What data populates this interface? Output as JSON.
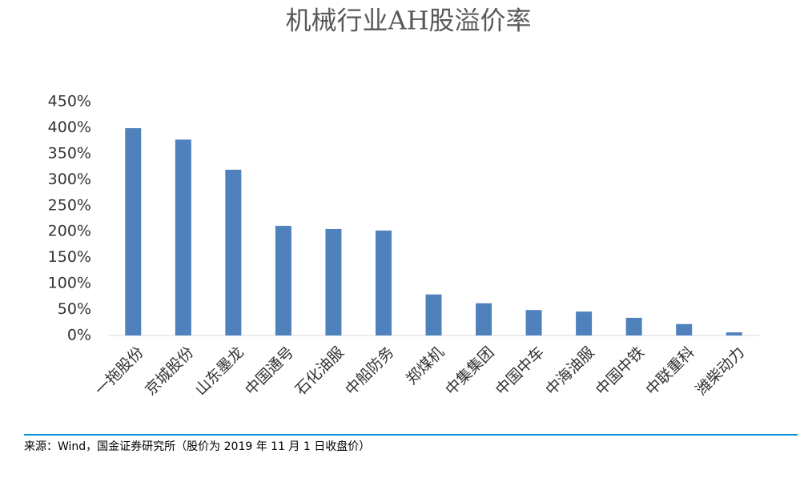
{
  "chart_data": {
    "type": "bar",
    "title": "机械行业AH股溢价率",
    "categories": [
      "一拖股份",
      "京城股份",
      "山东墨龙",
      "中国通号",
      "石化油服",
      "中船防务",
      "郑煤机",
      "中集集团",
      "中国中车",
      "中海油服",
      "中国中铁",
      "中联重科",
      "潍柴动力"
    ],
    "values": [
      399,
      377,
      319,
      211,
      205,
      202,
      79,
      62,
      49,
      46,
      34,
      22,
      6
    ],
    "color": "#4f81bd",
    "ylim": [
      0,
      450
    ],
    "yticks": [
      {
        "value": 0,
        "label": "0%"
      },
      {
        "value": 50,
        "label": "50%"
      },
      {
        "value": 100,
        "label": "100%"
      },
      {
        "value": 150,
        "label": "150%"
      },
      {
        "value": 200,
        "label": "200%"
      },
      {
        "value": 250,
        "label": "250%"
      },
      {
        "value": 300,
        "label": "300%"
      },
      {
        "value": 350,
        "label": "350%"
      },
      {
        "value": 400,
        "label": "400%"
      },
      {
        "value": 450,
        "label": "450%"
      }
    ],
    "grid": false
  },
  "source": "来源：Wind，国金证券研究所（股价为 2019 年 11 月 1 日收盘价）"
}
